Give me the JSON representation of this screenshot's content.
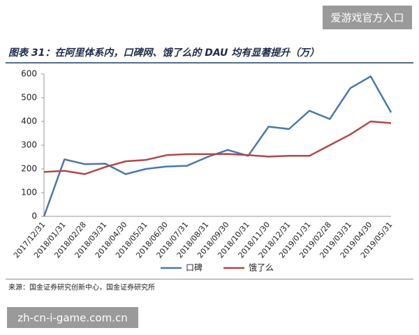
{
  "watermark_top": "爱游戏官方入口",
  "watermark_bottom": "zh-cn-i-game.com.cn",
  "chart_data": {
    "type": "line",
    "title": "图表 31：在阿里体系内，口碑网、饿了么的 DAU 均有显著提升（万）",
    "source": "来源：国金证券研究创新中心，国金证券研究所",
    "categories": [
      "2017/12/31",
      "2018/01/31",
      "2018/02/28",
      "2018/03/31",
      "2018/04/30",
      "2018/05/31",
      "2018/06/30",
      "2018/07/31",
      "2018/08/31",
      "2018/09/30",
      "2018/10/31",
      "2018/11/30",
      "2018/12/31",
      "2019/01/31",
      "2019/02/28",
      "2019/03/31",
      "2019/04/30",
      "2019/05/31"
    ],
    "series": [
      {
        "name": "口碑",
        "color": "#4a78a8",
        "values": [
          0,
          240,
          220,
          222,
          178,
          200,
          210,
          213,
          250,
          280,
          255,
          378,
          368,
          445,
          410,
          540,
          590,
          438
        ]
      },
      {
        "name": "饿了么",
        "color": "#b04848",
        "values": [
          187,
          192,
          178,
          208,
          232,
          238,
          258,
          262,
          262,
          263,
          258,
          252,
          255,
          255,
          300,
          345,
          400,
          393
        ]
      }
    ],
    "ylim": [
      0,
      600
    ],
    "yticks": [
      0,
      100,
      200,
      300,
      400,
      500,
      600
    ],
    "legend": "bottom"
  }
}
